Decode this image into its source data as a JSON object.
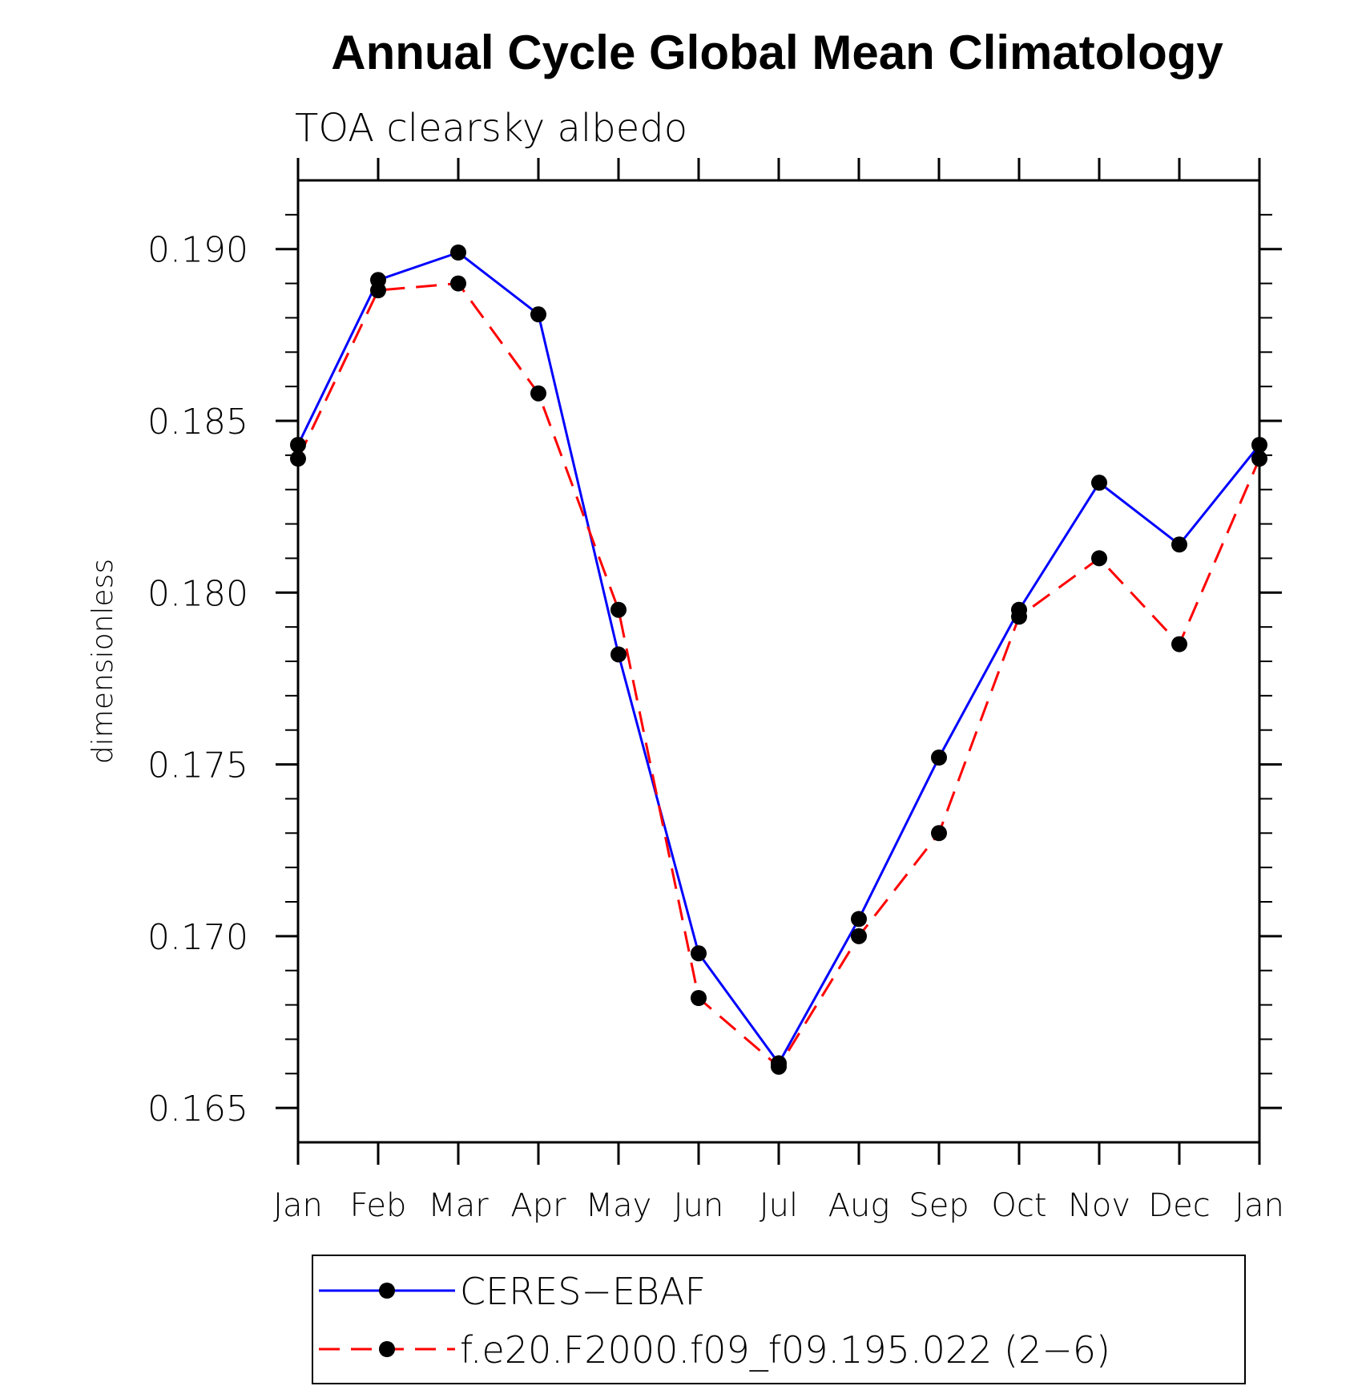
{
  "chart_data": {
    "type": "line",
    "title": "Annual Cycle Global Mean Climatology",
    "subtitle": "TOA clearsky albedo",
    "xlabel": "",
    "ylabel": "dimensionless",
    "categories": [
      "Jan",
      "Feb",
      "Mar",
      "Apr",
      "May",
      "Jun",
      "Jul",
      "Aug",
      "Sep",
      "Oct",
      "Nov",
      "Dec",
      "Jan"
    ],
    "ylim": [
      0.164,
      0.192
    ],
    "yticks": [
      0.165,
      0.17,
      0.175,
      0.18,
      0.185,
      0.19
    ],
    "ytick_labels": [
      "0.165",
      "0.170",
      "0.175",
      "0.180",
      "0.185",
      "0.190"
    ],
    "grid": false,
    "legend_position": "bottom",
    "series": [
      {
        "name": "CERES−EBAF",
        "color": "#0000ff",
        "dash": "solid",
        "marker": "filled-circle",
        "values": [
          0.1843,
          0.1891,
          0.1899,
          0.1881,
          0.1782,
          0.1695,
          0.1663,
          0.1705,
          0.1752,
          0.1795,
          0.1832,
          0.1814,
          0.1843
        ]
      },
      {
        "name": "f.e20.F2000.f09_f09.195.022 (2−6)",
        "color": "#ff0000",
        "dash": "dashed",
        "marker": "filled-circle",
        "values": [
          0.1839,
          0.1888,
          0.189,
          0.1858,
          0.1795,
          0.1682,
          0.1662,
          0.17,
          0.173,
          0.1793,
          0.181,
          0.1785,
          0.1839
        ]
      }
    ]
  }
}
